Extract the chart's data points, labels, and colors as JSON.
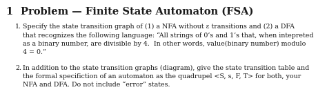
{
  "title_num": "1",
  "title_text": "Problem — Finite State Automaton (FSA)",
  "title_fontsize": 10.5,
  "title_num_fontsize": 10.5,
  "background_color": "#ffffff",
  "text_color": "#1a1a1a",
  "body_fontsize": 6.8,
  "items": [
    {
      "number": "1.",
      "text": "Specify the state transition graph of (1) a NFA without ε transitions and (2) a DFA\nthat recognizes the following language: “All strings of 0’s and 1’s that, when intepreted\nas a binary number, are divisible by 4.  In other words, value(binary number) modulo\n4 = 0.”"
    },
    {
      "number": "2.",
      "text": "In addition to the state transition graphs (diagram), give the state transition table and\nthe formal specifiction of an automaton as the quadrupel <S, s, F, T> for both, your\nNFA and DFA. Do not include “error” states."
    }
  ]
}
